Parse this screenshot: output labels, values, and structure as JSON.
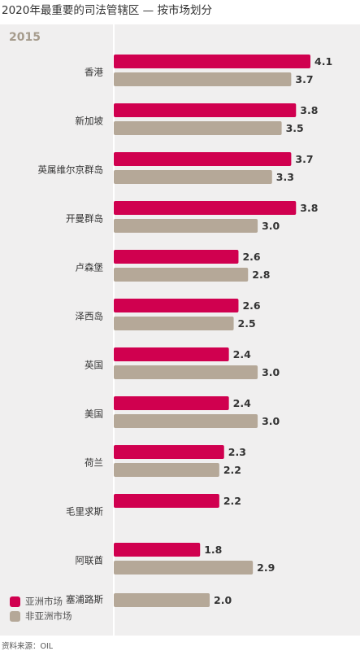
{
  "title": "2020年最重要的司法管辖区 — 按市场划分",
  "subtitle": "2015",
  "source": "资料来源：OIL",
  "colors": {
    "asia": "#d0004f",
    "non_asia": "#b5a898",
    "panel": "#f0efef"
  },
  "chart_data": {
    "type": "bar",
    "orientation": "horizontal",
    "title": "2020年最重要的司法管辖区 — 按市场划分",
    "subtitle": "2015",
    "categories": [
      "香港",
      "新加坡",
      "英属维尔京群岛",
      "开曼群岛",
      "卢森堡",
      "泽西岛",
      "英国",
      "美国",
      "荷兰",
      "毛里求斯",
      "阿联酋",
      "塞浦路斯"
    ],
    "series": [
      {
        "name": "亚洲市场",
        "color": "#d0004f",
        "values": [
          4.1,
          3.8,
          3.7,
          3.8,
          2.6,
          2.6,
          2.4,
          2.4,
          2.3,
          2.2,
          1.8,
          null
        ]
      },
      {
        "name": "非亚洲市场",
        "color": "#b5a898",
        "values": [
          3.7,
          3.5,
          3.3,
          3.0,
          2.8,
          2.5,
          3.0,
          3.0,
          2.2,
          null,
          2.9,
          2.0
        ]
      }
    ],
    "value_labels": {
      "asia": [
        "4.1",
        "3.8",
        "3.7",
        "3.8",
        "2.6",
        "2.6",
        "2.4",
        "2.4",
        "2.3",
        "2.2",
        "1.8",
        ""
      ],
      "non_asia": [
        "3.7",
        "3.5",
        "3.3",
        "3.0",
        "2.8",
        "2.5",
        "3.0",
        "3.0",
        "2.2",
        "",
        "2.9",
        "2.0"
      ]
    },
    "xlim": [
      0,
      4.1
    ],
    "legend": [
      {
        "name": "亚洲市场",
        "color": "#d0004f"
      },
      {
        "name": "非亚洲市场",
        "color": "#b5a898"
      }
    ],
    "legend_placement": "bottom-left",
    "grid": false
  }
}
